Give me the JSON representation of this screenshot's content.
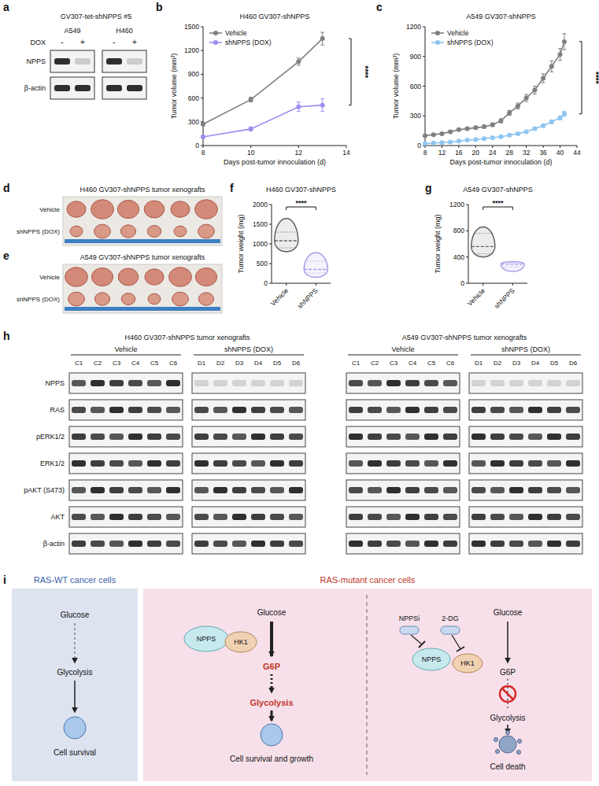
{
  "panel_labels": [
    "a",
    "b",
    "c",
    "d",
    "e",
    "f",
    "g",
    "h",
    "i"
  ],
  "blot_a": {
    "title": "GV307-tet-shNPPS #5",
    "cell_lines": [
      "A549",
      "H460"
    ],
    "treatment": "DOX",
    "conditions": [
      "-",
      "+"
    ],
    "rows": [
      "NPPS",
      "β-actin"
    ]
  },
  "chart_data": [
    {
      "type": "line",
      "title": "H460 GV307-shNPPS",
      "x_label": "Days post-tumor innoculation (d)",
      "y_label": "Tumor volume (mm³)",
      "x": [
        8,
        10,
        12,
        13
      ],
      "xlim": [
        8,
        14
      ],
      "xticks": [
        8,
        10,
        12,
        14
      ],
      "ylim": [
        0,
        1500
      ],
      "yticks": [
        0,
        300,
        600,
        900,
        1200,
        1500
      ],
      "legend": "upper left",
      "marker": "circle",
      "annotations": [
        "****"
      ],
      "series": [
        {
          "name": "Vehicle",
          "color": "#808080",
          "values": [
            270,
            580,
            1060,
            1350
          ],
          "errors": [
            20,
            30,
            45,
            80
          ]
        },
        {
          "name": "shNPPS (DOX)",
          "color": "#9b8ef0",
          "values": [
            110,
            210,
            490,
            510
          ],
          "errors": [
            15,
            25,
            60,
            80
          ]
        }
      ]
    },
    {
      "type": "line",
      "title": "A549 GV307-shNPPS",
      "x_label": "Days post-tumor innoculation (d)",
      "y_label": "Tumor volume (mm³)",
      "x": [
        8,
        10,
        12,
        14,
        16,
        18,
        20,
        22,
        24,
        26,
        28,
        30,
        32,
        34,
        36,
        38,
        40,
        41
      ],
      "xlim": [
        8,
        44
      ],
      "xticks": [
        8,
        12,
        16,
        20,
        24,
        28,
        32,
        36,
        40,
        44
      ],
      "ylim": [
        0,
        1200
      ],
      "yticks": [
        0,
        300,
        600,
        900,
        1200
      ],
      "legend": "upper left",
      "marker": "circle",
      "annotations": [
        "****"
      ],
      "series": [
        {
          "name": "Vehicle",
          "color": "#808080",
          "values": [
            100,
            110,
            120,
            140,
            160,
            170,
            180,
            190,
            210,
            250,
            330,
            400,
            480,
            560,
            680,
            800,
            920,
            1050
          ],
          "errors": [
            10,
            10,
            10,
            12,
            12,
            15,
            15,
            15,
            18,
            20,
            25,
            30,
            35,
            40,
            45,
            55,
            60,
            80
          ]
        },
        {
          "name": "shNPPS (DOX)",
          "color": "#8ec5f2",
          "values": [
            20,
            25,
            30,
            35,
            45,
            55,
            60,
            70,
            80,
            90,
            105,
            120,
            140,
            170,
            200,
            240,
            280,
            320
          ],
          "errors": [
            5,
            5,
            5,
            5,
            6,
            6,
            8,
            8,
            8,
            10,
            10,
            12,
            12,
            15,
            15,
            18,
            20,
            25
          ]
        }
      ]
    },
    {
      "type": "violin",
      "title": "H460 GV307-shNPPS",
      "y_label": "Tumor weight (mg)",
      "categories": [
        "Vehicle",
        "shNPPS"
      ],
      "ylim": [
        0,
        2000
      ],
      "yticks": [
        0,
        500,
        1000,
        1500,
        2000
      ],
      "annotations": [
        "****"
      ],
      "series": [
        {
          "color": "#606060",
          "min": 800,
          "q1": 900,
          "median": 1080,
          "q3": 1300,
          "max": 1650
        },
        {
          "color": "#a99ce8",
          "min": 150,
          "q1": 260,
          "median": 350,
          "q3": 560,
          "max": 780
        }
      ]
    },
    {
      "type": "violin",
      "title": "A549 GV307-shNPPS",
      "y_label": "Tumor weight (mg)",
      "categories": [
        "Vehicle",
        "shNPPS"
      ],
      "ylim": [
        0,
        1200
      ],
      "yticks": [
        0,
        400,
        800,
        1200
      ],
      "annotations": [
        "****"
      ],
      "series": [
        {
          "color": "#606060",
          "min": 400,
          "q1": 450,
          "median": 560,
          "q3": 760,
          "max": 860
        },
        {
          "color": "#a99ce8",
          "min": 180,
          "q1": 250,
          "median": 290,
          "q3": 310,
          "max": 330
        }
      ]
    }
  ],
  "photos": [
    {
      "title": "H460 GV307-shNPPS tumor xenografts",
      "rows": [
        "Vehicle",
        "shNPPS (DOX)"
      ]
    },
    {
      "title": "A549 GV307-shNPPS tumor xenografts",
      "rows": [
        "Vehicle",
        "shNPPS (DOX)"
      ]
    }
  ],
  "blots_h": {
    "rows": [
      "NPPS",
      "RAS",
      "pERK1/2",
      "ERK1/2",
      "pAKT (S473)",
      "AKT",
      "β-actin"
    ],
    "panels": [
      {
        "title": "H460 GV307-shNPPS tumor xenografts",
        "groups": [
          {
            "name": "Vehicle",
            "lanes": [
              "C1",
              "C2",
              "C3",
              "C4",
              "C5",
              "C6"
            ]
          },
          {
            "name": "shNPPS (DOX)",
            "lanes": [
              "D1",
              "D2",
              "D3",
              "D4",
              "D5",
              "D6"
            ]
          }
        ]
      },
      {
        "title": "A549 GV307-shNPPS tumor xenografts",
        "groups": [
          {
            "name": "Vehicle",
            "lanes": [
              "C1",
              "C2",
              "C3",
              "C4",
              "C5",
              "C6"
            ]
          },
          {
            "name": "shNPPS (DOX)",
            "lanes": [
              "D1",
              "D2",
              "D3",
              "D4",
              "D5",
              "D6"
            ]
          }
        ]
      }
    ]
  },
  "diagram": {
    "panels": [
      {
        "title": "RAS-WT cancer cells",
        "input": "Glucose",
        "process": "Glycolysis",
        "outcome": "Cell survival"
      },
      {
        "title": "RAS-mutant cancer cells",
        "input": "Glucose",
        "enzymes": [
          "NPPS",
          "HK1"
        ],
        "product": "G6P",
        "process": "Glycolysis",
        "outcome": "Cell survival and growth"
      },
      {
        "inhibitors": [
          "NPPSi",
          "2-DG"
        ],
        "input": "Glucose",
        "enzymes": [
          "NPPS",
          "HK1"
        ],
        "product": "G6P",
        "process": "Glycolysis",
        "outcome": "Cell death"
      }
    ]
  }
}
